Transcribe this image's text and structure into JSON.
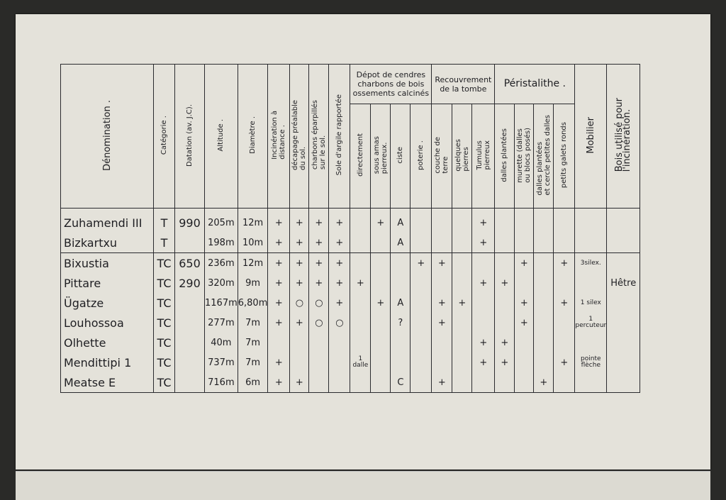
{
  "headers": {
    "denomination": "Dénomination .",
    "categorie": "Catégorie .",
    "datation": "Datation (av. J.C).",
    "altitude": "Altitude .",
    "diametre": "Diamètre .",
    "incineration": "Incinération à\ndistance .",
    "decapage": "décapage préalable\ndu sol.",
    "charbons": "charbons éparpillés\nsur le sol.",
    "sole": "Sole d'argile rapportée",
    "group_depot": "Dépot de cendres charbons de bois ossements calcinés",
    "directement": "directement",
    "sous_amas": "sous amas\npierreux.",
    "ciste": "ciste",
    "poterie": "poterie .",
    "group_recouvrement": "Recouvrement de la tombe",
    "couche": "couche de\nterre",
    "quelques": "quelques\npierres",
    "tumulus": "Tumulus\npierreux",
    "group_peristalithe": "Péristalithe .",
    "dalles_plantees": "dalles plantées",
    "murette": "murette (dalles\nou blocs posés)",
    "dalles_cercle": "dalles plantées\net cercle petites dalles",
    "galets": "petits galets ronds",
    "mobilier": "Mobilier",
    "bois": "Bois utilisé pour\nl'incinération."
  },
  "rows": [
    [
      "Zuhamendi III",
      "T",
      "990",
      "205m",
      "12m",
      "+",
      "+",
      "+",
      "+",
      "",
      "+",
      "A",
      "",
      "",
      "",
      "+",
      "",
      "",
      "",
      "",
      "",
      ""
    ],
    [
      "Bizkartxu",
      "T",
      "",
      "198m",
      "10m",
      "+",
      "+",
      "+",
      "+",
      "",
      "",
      "A",
      "",
      "",
      "",
      "+",
      "",
      "",
      "",
      "",
      "",
      ""
    ],
    [
      "Bixustia",
      "TC",
      "650",
      "236m",
      "12m",
      "+",
      "+",
      "+",
      "+",
      "",
      "",
      "",
      "+",
      "+",
      "",
      "",
      "",
      "+",
      "",
      "+",
      "3silex.",
      ""
    ],
    [
      "Pittare",
      "TC",
      "290",
      "320m",
      "9m",
      "+",
      "+",
      "+",
      "+",
      "+",
      "",
      "",
      "",
      "",
      "",
      "+",
      "+",
      "",
      "",
      "",
      "",
      "Hêtre"
    ],
    [
      "Ügatze",
      "TC",
      "",
      "1167m",
      "6,80m",
      "+",
      "○",
      "○",
      "+",
      "",
      "+",
      "A",
      "",
      "+",
      "+",
      "",
      "",
      "+",
      "",
      "+",
      "1 silex",
      ""
    ],
    [
      "Louhossoa",
      "TC",
      "",
      "277m",
      "7m",
      "+",
      "+",
      "○",
      "○",
      "",
      "",
      "?",
      "",
      "+",
      "",
      "",
      "",
      "+",
      "",
      "",
      "1 percuteur",
      ""
    ],
    [
      "Olhette",
      "TC",
      "",
      "40m",
      "7m",
      "",
      "",
      "",
      "",
      "",
      "",
      "",
      "",
      "",
      "",
      "+",
      "+",
      "",
      "",
      "",
      "",
      ""
    ],
    [
      "Mendittipi 1",
      "TC",
      "",
      "737m",
      "7m",
      "+",
      "",
      "",
      "",
      "1 dalle",
      "",
      "",
      "",
      "",
      "",
      "+",
      "+",
      "",
      "",
      "+",
      "pointe flèche",
      ""
    ],
    [
      "Meatse E",
      "TC",
      "",
      "716m",
      "6m",
      "+",
      "+",
      "",
      "",
      "",
      "",
      "C",
      "",
      "+",
      "",
      "",
      "",
      "",
      "+",
      "",
      "",
      ""
    ]
  ]
}
